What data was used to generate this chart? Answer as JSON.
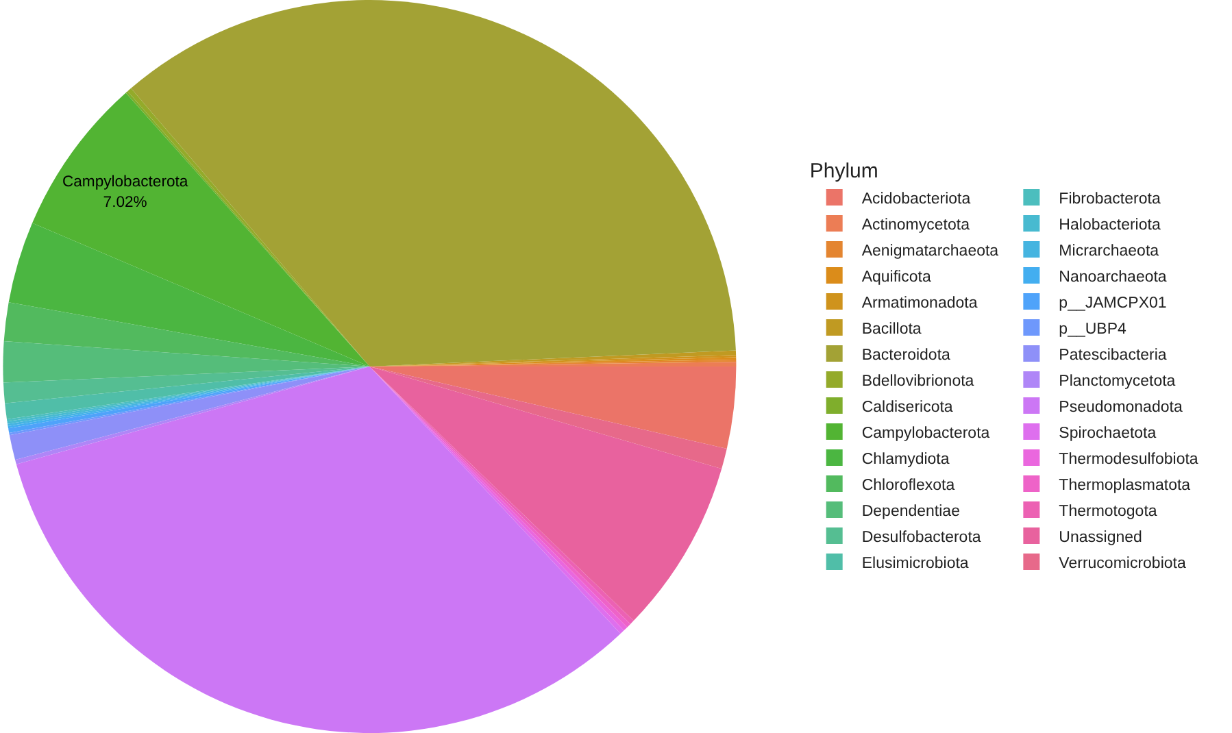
{
  "chart_data": {
    "type": "pie",
    "legend_title": "Phylum",
    "legend": "right",
    "categories": [
      "Acidobacteriota",
      "Actinomycetota",
      "Aenigmatarchaeota",
      "Aquificota",
      "Armatimonadota",
      "Bacillota",
      "Bacteroidota",
      "Bdellovibrionota",
      "Caldisericota",
      "Campylobacterota",
      "Chlamydiota",
      "Chloroflexota",
      "Dependentiae",
      "Desulfobacterota",
      "Elusimicrobiota",
      "Fibrobacterota",
      "Halobacteriota",
      "Micrarchaeota",
      "Nanoarchaeota",
      "p__JAMCPX01",
      "p__UBP4",
      "Patescibacteria",
      "Planctomycetota",
      "Pseudomonadota",
      "Spirochaetota",
      "Thermodesulfobiota",
      "Thermoplasmatota",
      "Thermotogota",
      "Unassigned",
      "Verrucomicrobiota"
    ],
    "values": [
      3.6,
      0.2,
      0.1,
      0.1,
      0.1,
      0.2,
      35.58,
      0.2,
      0.1,
      7.02,
      3.6,
      1.7,
      1.8,
      0.9,
      0.7,
      0.1,
      0.1,
      0.1,
      0.1,
      0.2,
      0.1,
      1.1,
      0.2,
      32.7,
      0.2,
      0.2,
      0.2,
      0.2,
      7.7,
      0.9
    ],
    "colors": [
      "#EB7468",
      "#EC7D55",
      "#E48530",
      "#DB8C1A",
      "#CF931C",
      "#C09A22",
      "#A3A235",
      "#94AA2A",
      "#7FAE2C",
      "#52B433",
      "#4BB641",
      "#52BA5E",
      "#55BD7A",
      "#55BE92",
      "#50BEA8",
      "#4CBEBE",
      "#48BAD0",
      "#45B4E0",
      "#43AEF0",
      "#4FA3FA",
      "#6E98FC",
      "#8E90F8",
      "#AF86F7",
      "#CC77F5",
      "#DE6FEE",
      "#EA67DE",
      "#EE63C8",
      "#EC61B3",
      "#E8629E",
      "#E7698A"
    ],
    "value_labels": [
      null,
      null,
      null,
      null,
      null,
      null,
      null,
      null,
      null,
      "Campylobacterota\n7.02%",
      null,
      null,
      null,
      null,
      null,
      null,
      null,
      null,
      null,
      null,
      null,
      null,
      null,
      null,
      null,
      null,
      null,
      null,
      null,
      null
    ]
  }
}
